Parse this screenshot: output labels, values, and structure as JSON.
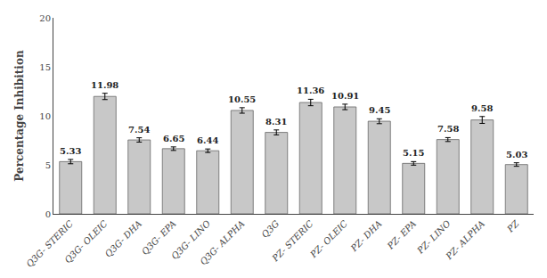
{
  "chart_data": {
    "type": "bar",
    "ylabel": "Percentage Inhibition",
    "categories": [
      "Q3G- STERIC",
      "Q3G- OLEIC",
      "Q3G- DHA",
      "Q3G- EPA",
      "Q3G- LINO",
      "Q3G- ALPHA",
      "Q3G",
      "PZ- STERIC",
      "PZ- OLEIC",
      "PZ- DHA",
      "PZ- EPA",
      "PZ- LINO",
      "PZ- ALPHA",
      "PZ"
    ],
    "values": [
      5.33,
      11.98,
      7.54,
      6.65,
      6.44,
      10.55,
      8.31,
      11.36,
      10.91,
      9.45,
      5.15,
      7.58,
      9.58,
      5.03
    ],
    "errors": [
      0.22,
      0.32,
      0.22,
      0.18,
      0.18,
      0.28,
      0.25,
      0.33,
      0.28,
      0.25,
      0.18,
      0.2,
      0.35,
      0.18
    ],
    "color": "#c8c8c8",
    "ylim": [
      0,
      20
    ],
    "yticks": [
      0,
      5,
      10,
      15,
      20
    ],
    "grid": false,
    "data_labels": true
  }
}
